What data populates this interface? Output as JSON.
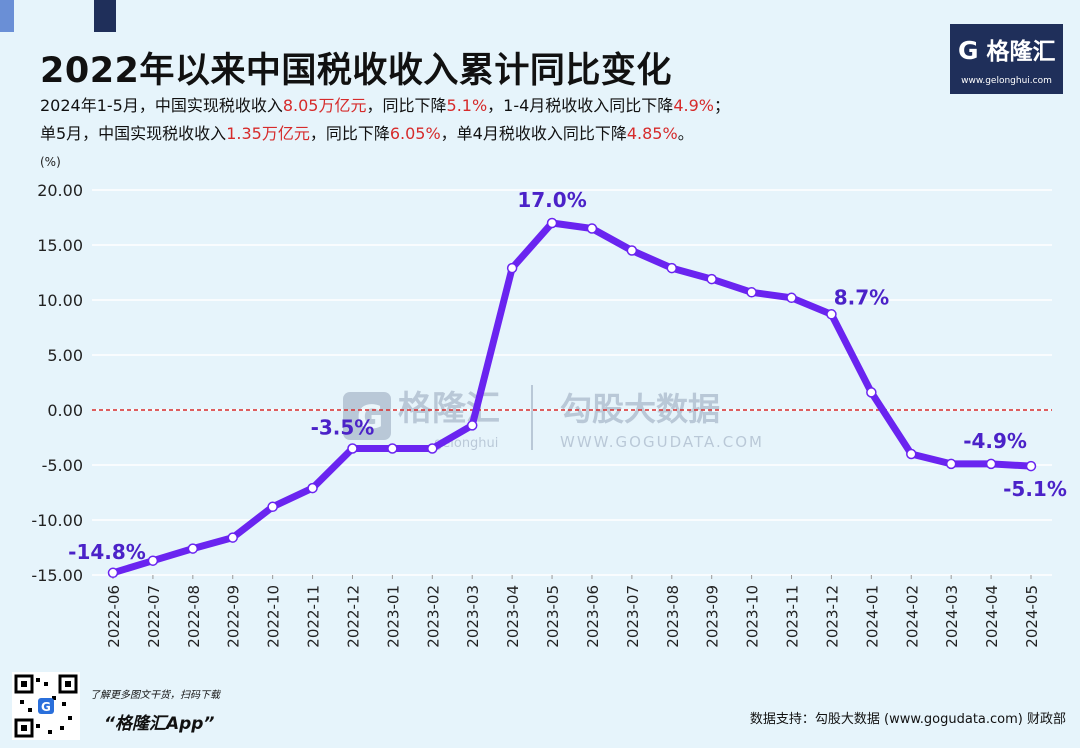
{
  "header": {
    "title": "2022年以来中国税收收入累计同比变化",
    "line1": [
      {
        "t": "2024年1-5月，中国实现税收收入",
        "hl": false
      },
      {
        "t": "8.05万亿元",
        "hl": true
      },
      {
        "t": "，同比下降",
        "hl": false
      },
      {
        "t": "5.1%",
        "hl": true
      },
      {
        "t": "，1-4月税收收入同比下降",
        "hl": false
      },
      {
        "t": "4.9%",
        "hl": true
      },
      {
        "t": "；",
        "hl": false
      }
    ],
    "line2": [
      {
        "t": "单5月，中国实现税收收入",
        "hl": false
      },
      {
        "t": "1.35万亿元",
        "hl": true
      },
      {
        "t": "，同比下降",
        "hl": false
      },
      {
        "t": "6.05%",
        "hl": true
      },
      {
        "t": "，单4月税收收入同比下降",
        "hl": false
      },
      {
        "t": "4.85%",
        "hl": true
      },
      {
        "t": "。",
        "hl": false
      }
    ]
  },
  "logo": {
    "name": "格隆汇",
    "url": "www.gelonghui.com"
  },
  "watermark": {
    "left": "格隆汇",
    "left_sub": "gelonghui",
    "right": "勾股大数据",
    "right_sub": "WWW.GOGUDATA.COM"
  },
  "footer": {
    "tagline": "了解更多图文干货，扫码下载",
    "app": "“格隆汇App”",
    "source": "数据支持：勾股大数据 (www.gogudata.com) 财政部"
  },
  "colors": {
    "line": "#6a24f0",
    "label": "#4b22c8",
    "zero": "#d62b2b",
    "accent": "#1f2f5a"
  },
  "chart_data": {
    "type": "line",
    "title": "2022年以来中国税收收入累计同比变化",
    "ylabel": "(%)",
    "ylim": [
      -15,
      20
    ],
    "yticks": [
      20,
      15,
      10,
      5,
      0,
      -5,
      -10,
      -15
    ],
    "ytick_labels": [
      "20.00",
      "15.00",
      "10.00",
      "5.00",
      "0.00",
      "-5.00",
      "-10.00",
      "-15.00"
    ],
    "categories": [
      "2022-06",
      "2022-07",
      "2022-08",
      "2022-09",
      "2022-10",
      "2022-11",
      "2022-12",
      "2023-01",
      "2023-02",
      "2023-03",
      "2023-04",
      "2023-05",
      "2023-06",
      "2023-07",
      "2023-08",
      "2023-09",
      "2023-10",
      "2023-11",
      "2023-12",
      "2024-01",
      "2024-02",
      "2024-03",
      "2024-04",
      "2024-05"
    ],
    "series": [
      {
        "name": "税收收入累计同比",
        "values": [
          -14.8,
          -13.7,
          -12.6,
          -11.6,
          -8.8,
          -7.1,
          -3.5,
          -3.5,
          -3.5,
          -1.4,
          12.9,
          17.0,
          16.5,
          14.5,
          12.9,
          11.9,
          10.7,
          10.2,
          8.7,
          1.6,
          -4.0,
          -4.9,
          -4.9,
          -5.1
        ]
      }
    ],
    "annotations": [
      {
        "index": 0,
        "text": "-14.8%"
      },
      {
        "index": 6,
        "text": "-3.5%"
      },
      {
        "index": 11,
        "text": "17.0%"
      },
      {
        "index": 18,
        "text": "8.7%"
      },
      {
        "index": 22,
        "text": "-4.9%"
      },
      {
        "index": 23,
        "text": "-5.1%"
      }
    ],
    "reference_line": 0
  }
}
